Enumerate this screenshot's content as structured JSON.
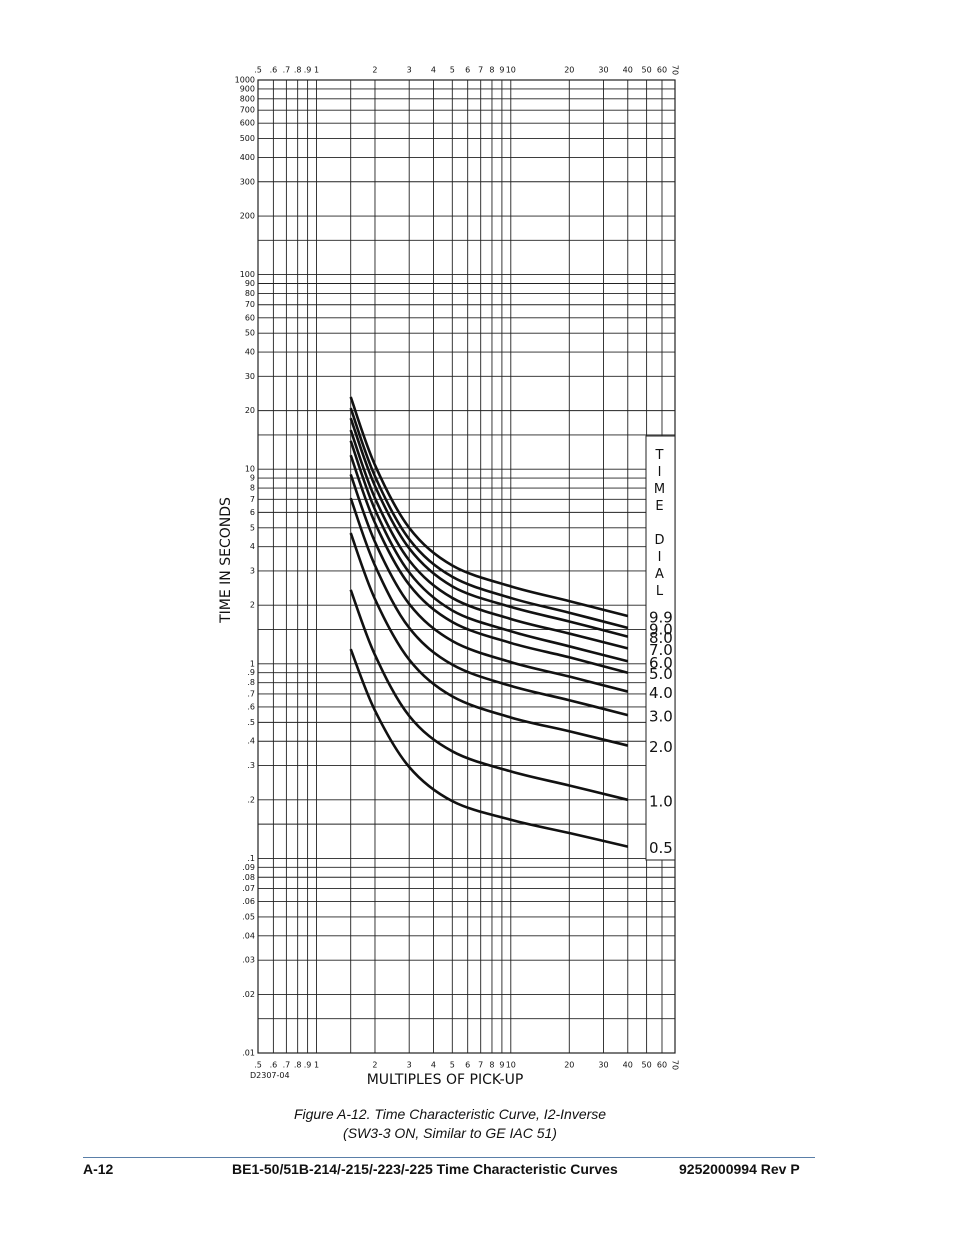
{
  "chart_data": {
    "type": "line",
    "x_label": "MULTIPLES OF PICK-UP",
    "y_label": "TIME IN SECONDS",
    "legend_title": "TIME DIAL",
    "drawing_code": "D2307-04",
    "log_x": true,
    "log_y": true,
    "grid": true,
    "xlim": [
      0.5,
      70
    ],
    "ylim": [
      0.01,
      1000
    ],
    "xticks": [
      {
        "value": 0.5,
        "label": ".5"
      },
      {
        "value": 0.6,
        "label": ".6"
      },
      {
        "value": 0.7,
        "label": ".7"
      },
      {
        "value": 0.8,
        "label": ".8"
      },
      {
        "value": 0.9,
        "label": ".9"
      },
      1,
      2,
      3,
      4,
      5,
      6,
      7,
      8,
      9,
      10,
      20,
      30,
      40,
      50,
      60,
      70
    ],
    "yticks": [
      1000,
      900,
      800,
      700,
      600,
      500,
      400,
      300,
      200,
      100,
      90,
      80,
      70,
      60,
      50,
      40,
      30,
      20,
      10,
      9,
      8,
      7,
      6,
      5,
      4,
      3,
      2,
      1,
      {
        "value": 0.9,
        "label": ".9"
      },
      {
        "value": 0.8,
        "label": ".8"
      },
      {
        "value": 0.7,
        "label": ".7"
      },
      {
        "value": 0.6,
        "label": ".6"
      },
      {
        "value": 0.5,
        "label": ".5"
      },
      {
        "value": 0.4,
        "label": ".4"
      },
      {
        "value": 0.3,
        "label": ".3"
      },
      {
        "value": 0.2,
        "label": ".2"
      },
      {
        "value": 0.1,
        "label": ".1"
      },
      {
        "value": 0.09,
        "label": ".09"
      },
      {
        "value": 0.08,
        "label": ".08"
      },
      {
        "value": 0.07,
        "label": ".07"
      },
      {
        "value": 0.06,
        "label": ".06"
      },
      {
        "value": 0.05,
        "label": ".05"
      },
      {
        "value": 0.04,
        "label": ".04"
      },
      {
        "value": 0.03,
        "label": ".03"
      },
      {
        "value": 0.02,
        "label": ".02"
      },
      {
        "value": 0.01,
        "label": ".01"
      }
    ],
    "x_minor_grid": [
      1.5
    ],
    "y_minor_grid": [
      150,
      15,
      1.5,
      0.15,
      0.015
    ],
    "x": [
      1.5,
      2,
      3,
      5,
      10,
      20,
      40
    ],
    "series": [
      {
        "name": "0.5",
        "color": "#111111",
        "values": [
          1.19,
          0.575,
          0.295,
          0.197,
          0.158,
          0.135,
          0.115
        ]
      },
      {
        "name": "1.0",
        "color": "#111111",
        "values": [
          2.4,
          1.11,
          0.54,
          0.355,
          0.28,
          0.237,
          0.2
        ]
      },
      {
        "name": "2.0",
        "color": "#111111",
        "values": [
          4.7,
          2.15,
          1.05,
          0.68,
          0.53,
          0.45,
          0.38
        ]
      },
      {
        "name": "3.0",
        "color": "#111111",
        "values": [
          7.1,
          3.2,
          1.53,
          0.99,
          0.77,
          0.65,
          0.545
        ]
      },
      {
        "name": "4.0",
        "color": "#111111",
        "values": [
          9.4,
          4.23,
          2.03,
          1.31,
          1.02,
          0.86,
          0.72
        ]
      },
      {
        "name": "5.0",
        "color": "#111111",
        "values": [
          11.8,
          5.3,
          2.55,
          1.64,
          1.28,
          1.08,
          0.9
        ]
      },
      {
        "name": "6.0",
        "color": "#111111",
        "values": [
          14,
          6.2,
          2.95,
          1.88,
          1.47,
          1.23,
          1.03
        ]
      },
      {
        "name": "7.0",
        "color": "#111111",
        "values": [
          15.9,
          7.1,
          3.4,
          2.18,
          1.7,
          1.43,
          1.2
        ]
      },
      {
        "name": "8.0",
        "color": "#111111",
        "values": [
          18.3,
          8.2,
          3.92,
          2.5,
          1.96,
          1.65,
          1.38
        ]
      },
      {
        "name": "9.0",
        "color": "#111111",
        "values": [
          20.6,
          9.2,
          4.37,
          2.8,
          2.18,
          1.83,
          1.53
        ]
      },
      {
        "name": "9.9",
        "color": "#111111",
        "values": [
          23.5,
          10.5,
          5.0,
          3.2,
          2.5,
          2.1,
          1.76
        ]
      }
    ]
  },
  "caption": [
    "Figure A-12. Time Characteristic Curve, I2-Inverse",
    "(SW3-3 ON, Similar to GE IAC 51)"
  ],
  "footer": {
    "page": "A-12",
    "title": "BE1-50/51B-214/-215/-223/-225 Time Characteristic Curves",
    "doc": "9252000994 Rev P"
  }
}
